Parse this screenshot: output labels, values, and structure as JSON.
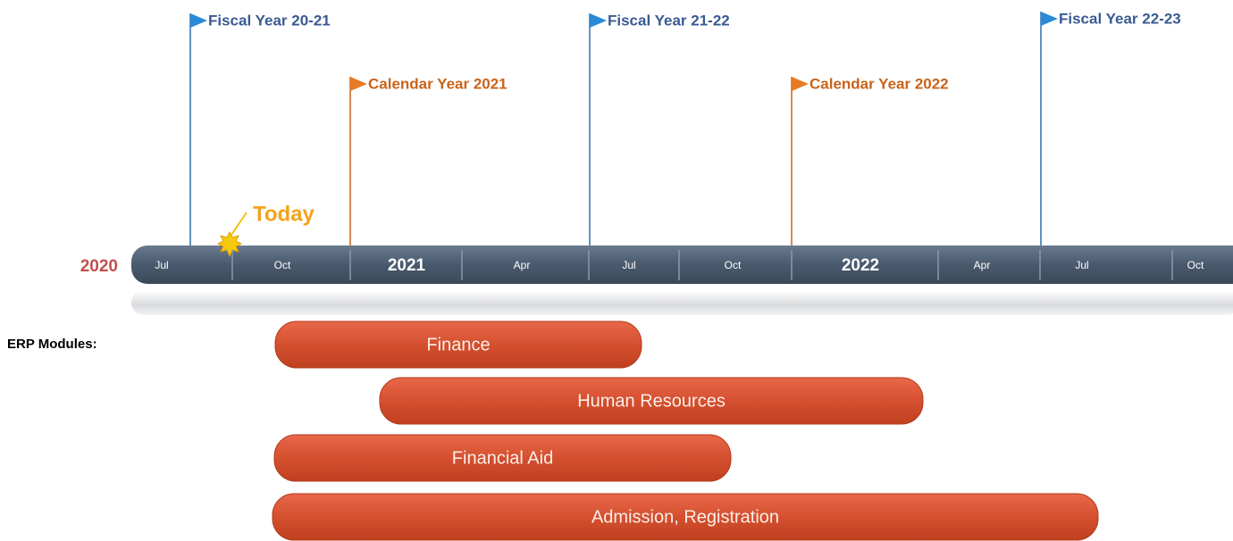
{
  "timeline": {
    "start_year": "2020",
    "axis_labels": [
      "Jul",
      "Oct",
      "2021",
      "Apr",
      "Jul",
      "Oct",
      "2022",
      "Apr",
      "Jul",
      "Oct"
    ],
    "today": "Today",
    "flags": [
      {
        "label": "Fiscal Year 20-21",
        "kind": "fiscal"
      },
      {
        "label": "Calendar Year 2021",
        "kind": "calendar"
      },
      {
        "label": "Fiscal Year 21-22",
        "kind": "fiscal"
      },
      {
        "label": "Calendar Year 2022",
        "kind": "calendar"
      },
      {
        "label": "Fiscal Year 22-23",
        "kind": "fiscal"
      }
    ]
  },
  "modules": {
    "heading": "ERP Modules:",
    "items": [
      "Finance",
      "Human Resources",
      "Financial Aid",
      "Admission, Registration"
    ]
  }
}
